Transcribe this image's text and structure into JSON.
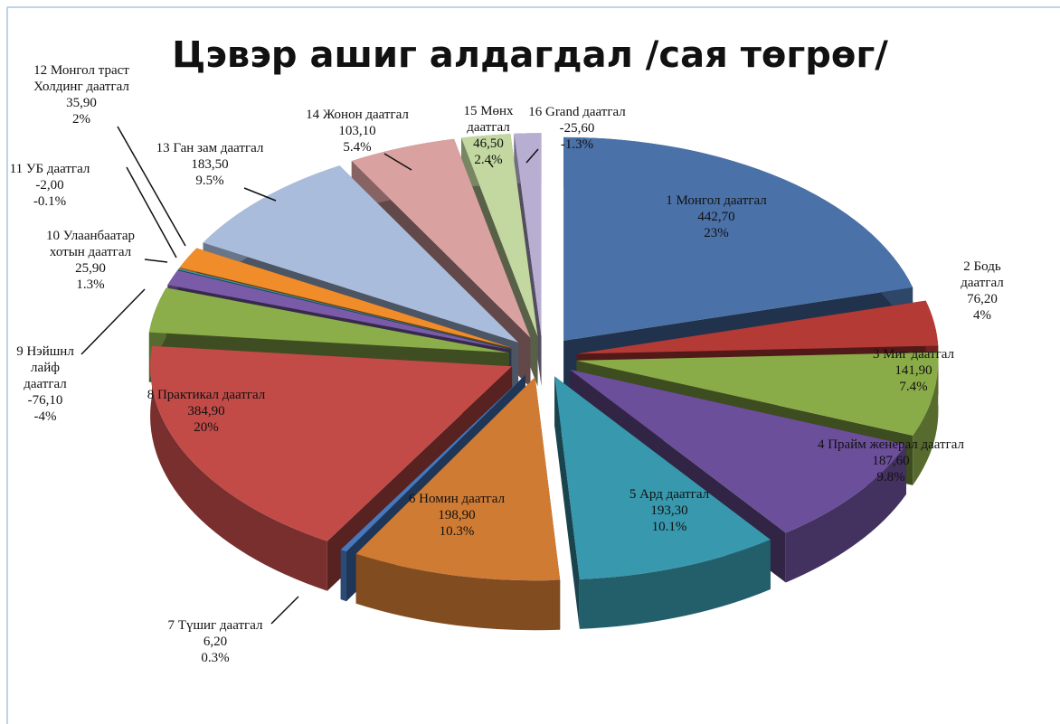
{
  "chart_data": {
    "type": "pie",
    "title": "Цэвэр ашиг алдагдал /сая төгрөг/",
    "categories": [
      "1 Монгол даатгал",
      "2 Бодь даатгал",
      "3 Миг даатгал",
      "4 Прайм женерал даатгал",
      "5 Ард даатгал",
      "6 Номин даатгал",
      "7 Түшиг даатгал",
      "8 Практикал даатгал",
      "9 Нэйшнл лайф даатгал",
      "10 Улаанбаатар хотын даатгал",
      "11 УБ даатгал",
      "12 Монгол траст Холдинг даатгал",
      "13 Ган зам даатгал",
      "14 Жонон даатгал",
      "15 Мөнх даатгал",
      "16 Grand  даатгал"
    ],
    "values": [
      442.7,
      76.2,
      141.9,
      187.6,
      193.3,
      198.9,
      6.2,
      384.9,
      -76.1,
      25.9,
      -2.0,
      35.9,
      183.5,
      103.1,
      46.5,
      -25.6
    ],
    "value_labels": [
      "442,70",
      "76,20",
      "141,90",
      "187,60",
      "193,30",
      "198,90",
      "6,20",
      "384,90",
      "-76,10",
      "25,90",
      "-2,00",
      "35,90",
      "183,50",
      "103,10",
      "46,50",
      "-25,60"
    ],
    "percents": [
      23,
      4,
      7.4,
      9.8,
      10.1,
      10.3,
      0.3,
      20,
      -4,
      1.3,
      -0.1,
      2,
      9.5,
      5.4,
      2.4,
      -1.3
    ],
    "percent_labels": [
      "23%",
      "4%",
      "7.4%",
      "9.8%",
      "10.1%",
      "10.3%",
      "0.3%",
      "20%",
      "-4%",
      "1.3%",
      "-0.1%",
      "2%",
      "9.5%",
      "5.4%",
      "2.4%",
      "-1.3%"
    ],
    "colors": [
      "#4a71a8",
      "#b43a36",
      "#8aac48",
      "#6c4f9a",
      "#3898ad",
      "#d07b33",
      "#4778be",
      "#c24b48",
      "#8bae4b",
      "#7a5ba8",
      "#3b9ab0",
      "#f08c2a",
      "#a9bcdc",
      "#d9a1a0",
      "#c3d8a0",
      "#b8aed2"
    ]
  }
}
